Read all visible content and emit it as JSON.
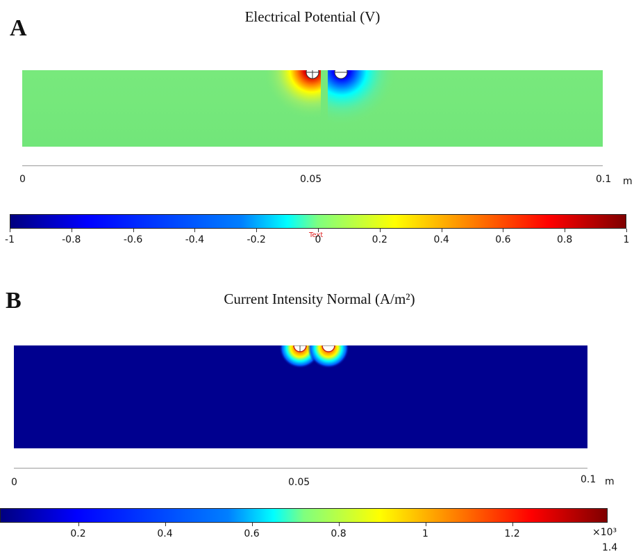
{
  "panel_a": {
    "letter": "A",
    "title": "Electrical Potential (V)",
    "axis": {
      "ticks": [
        "0",
        "0.05",
        "0.1"
      ],
      "unit": "m"
    },
    "colorbar": {
      "labels": [
        "-1",
        "-0.8",
        "-0.6",
        "-0.4",
        "-0.2",
        "0",
        "0.2",
        "0.4",
        "0.6",
        "0.8",
        "1"
      ],
      "stray_text": "Text"
    },
    "colors": {
      "background_field": "#76e87a",
      "positive": "#d00000",
      "negative": "#0000c8"
    }
  },
  "panel_b": {
    "letter": "B",
    "title": "Current Intensity Normal (A/m²)",
    "axis": {
      "ticks": [
        "0",
        "0.05",
        "0.1"
      ],
      "unit": "m"
    },
    "colorbar": {
      "labels": [
        "0.2",
        "0.4",
        "0.6",
        "0.8",
        "1",
        "1.2"
      ],
      "multiplier": "×10³",
      "max_label": "1.4"
    },
    "colors": {
      "background_field": "#00008f",
      "hot": "#ff2a00"
    }
  }
}
